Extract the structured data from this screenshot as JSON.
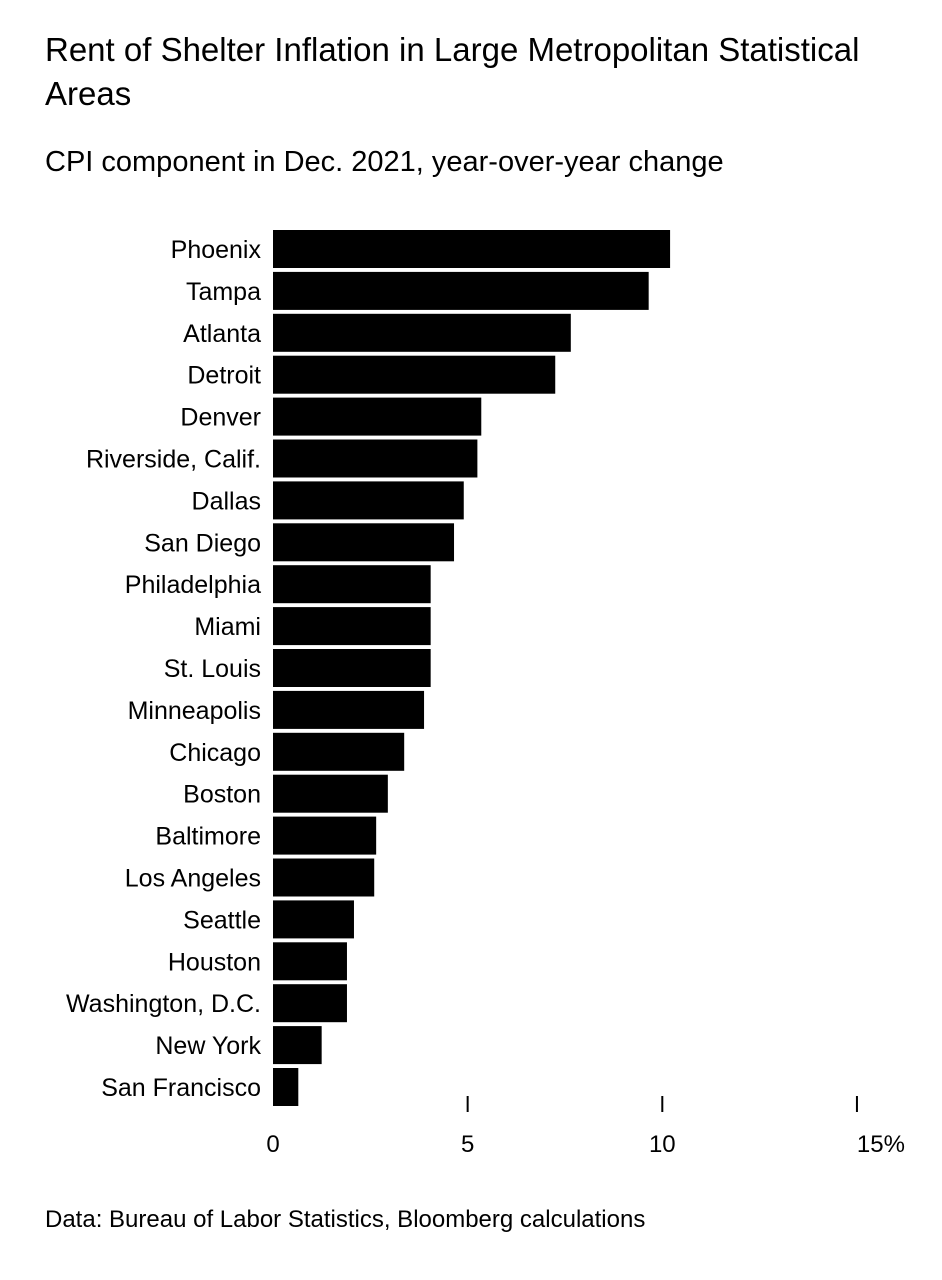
{
  "chart_data": {
    "type": "bar",
    "orientation": "horizontal",
    "title": "Rent of Shelter Inflation in Large Metropolitan Statistical Areas",
    "subtitle": "CPI component in Dec. 2021, year-over-year change",
    "categories": [
      "Phoenix",
      "Tampa",
      "Atlanta",
      "Detroit",
      "Denver",
      "Riverside, Calif.",
      "Dallas",
      "San Diego",
      "Philadelphia",
      "Miami",
      "St. Louis",
      "Minneapolis",
      "Chicago",
      "Boston",
      "Baltimore",
      "Los Angeles",
      "Seattle",
      "Houston",
      "Washington, D.C.",
      "New York",
      "San Francisco"
    ],
    "values": [
      10.2,
      9.65,
      7.65,
      7.25,
      5.35,
      5.25,
      4.9,
      4.65,
      4.05,
      4.05,
      4.05,
      3.88,
      3.37,
      2.95,
      2.65,
      2.6,
      2.08,
      1.9,
      1.9,
      1.25,
      0.65
    ],
    "xlim": [
      0,
      15
    ],
    "xticks": [
      0,
      5,
      10,
      15
    ],
    "xtick_labels": [
      "0",
      "5",
      "10",
      "15%"
    ],
    "bar_color": "#000000",
    "grid": false,
    "legend": "none",
    "source": "Data: Bureau of Labor Statistics, Bloomberg calculations"
  }
}
